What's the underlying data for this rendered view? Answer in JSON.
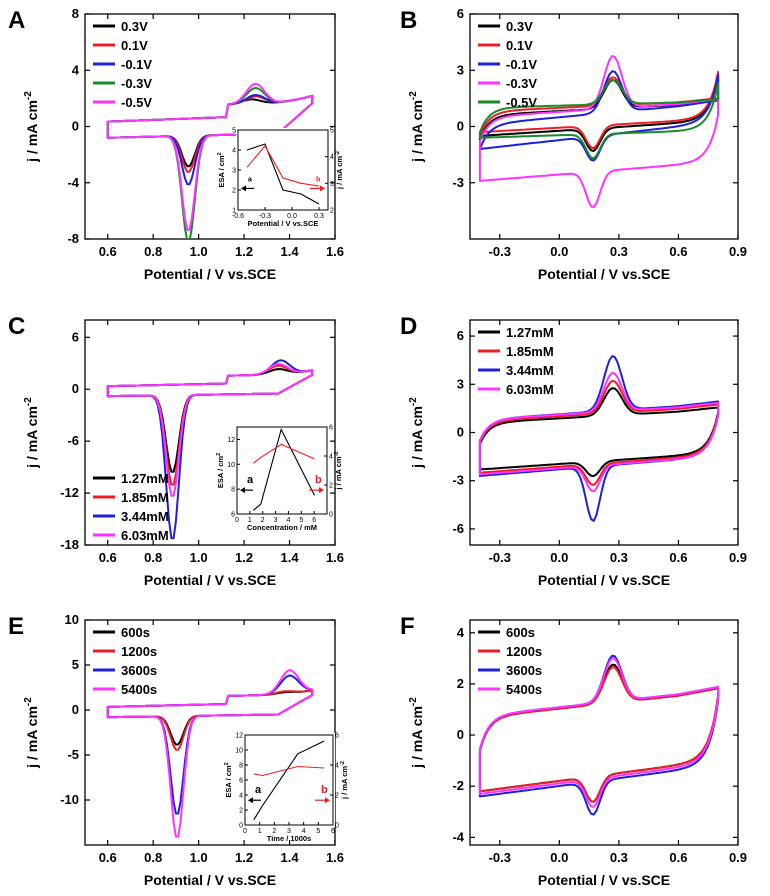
{
  "colors": {
    "black": "#000000",
    "red": "#ee1c24",
    "blue": "#1f1fe0",
    "magenta": "#ff33ff",
    "green": "#1b8a2a"
  },
  "chart_data": [
    {
      "panel": "A",
      "type": "line",
      "xlabel": "Potential / V vs.SCE",
      "ylabel": "j / mA cm",
      "ylabel_sup": "-2",
      "xlim": [
        0.5,
        1.6
      ],
      "ylim": [
        -8,
        8
      ],
      "xticks": [
        "0.6",
        "0.8",
        "1.0",
        "1.2",
        "1.4",
        "1.6"
      ],
      "yticks": [
        "-8",
        "-4",
        "0",
        "4",
        "8"
      ],
      "legend_pos": "top-left",
      "legend": [
        "0.3V",
        "0.1V",
        "-0.1V",
        "-0.3V",
        "-0.5V"
      ],
      "series": [
        {
          "name": "0.3V",
          "color": "black",
          "peak_pos": 1.23,
          "peak_h": 0.3,
          "valley": -2.2
        },
        {
          "name": "0.1V",
          "color": "red",
          "peak_pos": 1.25,
          "peak_h": 0.5,
          "valley": -2.6
        },
        {
          "name": "-0.1V",
          "color": "blue",
          "peak_pos": 1.25,
          "peak_h": 0.6,
          "valley": -3.5
        },
        {
          "name": "-0.3V",
          "color": "green",
          "peak_pos": 1.25,
          "peak_h": 1.1,
          "valley": -7.6
        },
        {
          "name": "-0.5V",
          "color": "magenta",
          "peak_pos": 1.25,
          "peak_h": 1.4,
          "valley": -6.8
        }
      ],
      "inset": {
        "xlabel": "Potential / V vs.SCE",
        "ylabel_left": "ESA / cm",
        "ylabel_left_sup": "2",
        "ylabel_right": "j / mA cm",
        "ylabel_right_sup": "-2",
        "xlim": [
          -0.6,
          0.4
        ],
        "ylim_left": [
          1,
          5
        ],
        "ylim_right": [
          2,
          5
        ],
        "xticks": [
          "-0.6",
          "-0.3",
          "0.0",
          "0.3"
        ],
        "yticks_left": [
          "1",
          "2",
          "3",
          "4",
          "5"
        ],
        "yticks_right": [
          "2",
          "3",
          "4",
          "5"
        ],
        "a": {
          "label": "a",
          "x": [
            -0.5,
            -0.3,
            -0.1,
            0.1,
            0.3
          ],
          "y": [
            4.0,
            4.3,
            2.0,
            1.8,
            1.3
          ]
        },
        "b": {
          "label": "b",
          "x": [
            -0.5,
            -0.3,
            -0.1,
            0.1,
            0.3
          ],
          "y": [
            3.6,
            4.4,
            3.2,
            3.0,
            2.9
          ]
        }
      }
    },
    {
      "panel": "B",
      "type": "line",
      "xlabel": "Potential / V vs.SCE",
      "ylabel": "j / mA cm",
      "ylabel_sup": "-2",
      "xlim": [
        -0.45,
        0.9
      ],
      "ylim": [
        -6,
        6
      ],
      "xticks": [
        "-0.3",
        "0.0",
        "0.3",
        "0.6",
        "0.9"
      ],
      "yticks": [
        "-3",
        "0",
        "3",
        "6"
      ],
      "legend_pos": "top-left",
      "legend": [
        "0.3V",
        "0.1V",
        "-0.1V",
        "-0.3V",
        "-0.5V"
      ],
      "series": [
        {
          "name": "0.3V",
          "color": "black",
          "base_up": 0.6,
          "base_low": -0.5,
          "ox": 1.5,
          "red": 1.2,
          "slope": 0.8
        },
        {
          "name": "0.1V",
          "color": "red",
          "base_up": 0.8,
          "base_low": -0.3,
          "ox": 1.5,
          "red": 1.2,
          "slope": 0.7
        },
        {
          "name": "-0.1V",
          "color": "blue",
          "base_up": 0.1,
          "base_low": -1.2,
          "ox": 2.2,
          "red": 1.3,
          "slope": 1.4
        },
        {
          "name": "-0.3V",
          "color": "magenta",
          "base_up": 0.5,
          "base_low": -2.9,
          "ox": 2.8,
          "red": 1.9,
          "slope": 1.0
        },
        {
          "name": "-0.5V",
          "color": "green",
          "base_up": 1.0,
          "base_low": -0.6,
          "ox": 1.3,
          "red": 1.3,
          "slope": 0.4
        }
      ]
    },
    {
      "panel": "C",
      "type": "line",
      "xlabel": "Potential / V vs.SCE",
      "ylabel": "j / mA cm",
      "ylabel_sup": "-2",
      "xlim": [
        0.5,
        1.6
      ],
      "ylim": [
        -18,
        8
      ],
      "xticks": [
        "0.6",
        "0.8",
        "1.0",
        "1.2",
        "1.4",
        "1.6"
      ],
      "yticks": [
        "-18",
        "-12",
        "-6",
        "0",
        "6"
      ],
      "legend_pos": "bottom-left",
      "legend": [
        "1.27mM",
        "1.85mM",
        "3.44mM",
        "6.03mM"
      ],
      "series": [
        {
          "name": "1.27mM",
          "color": "black",
          "peak_pos": 1.35,
          "peak_h": 0.6,
          "valley": -9.0
        },
        {
          "name": "1.85mM",
          "color": "red",
          "peak_pos": 1.35,
          "peak_h": 1.0,
          "valley": -10.5
        },
        {
          "name": "3.44mM",
          "color": "blue",
          "peak_pos": 1.36,
          "peak_h": 1.6,
          "valley": -16.8
        },
        {
          "name": "6.03mM",
          "color": "magenta",
          "peak_pos": 1.35,
          "peak_h": 1.2,
          "valley": -11.8
        }
      ],
      "inset": {
        "xlabel": "Concentration / mM",
        "ylabel_left": "ESA / cm",
        "ylabel_left_sup": "2",
        "ylabel_right": "j / mA cm",
        "ylabel_right_sup": "-2",
        "xlim": [
          0,
          7
        ],
        "ylim_left": [
          6,
          13
        ],
        "ylim_right": [
          0,
          6
        ],
        "xticks": [
          "0",
          "1",
          "2",
          "3",
          "4",
          "5",
          "6"
        ],
        "yticks_left": [
          "6",
          "8",
          "10",
          "12"
        ],
        "yticks_right": [
          "0",
          "2",
          "4",
          "6"
        ],
        "a": {
          "label": "a",
          "x": [
            1.27,
            1.85,
            3.44,
            6.03
          ],
          "y": [
            6.3,
            6.8,
            12.8,
            7.5
          ]
        },
        "b": {
          "label": "b",
          "x": [
            1.27,
            1.85,
            3.44,
            6.03
          ],
          "y": [
            3.5,
            3.9,
            4.8,
            3.8
          ]
        }
      }
    },
    {
      "panel": "D",
      "type": "line",
      "xlabel": "Potential / V vs.SCE",
      "ylabel": "j / mA cm",
      "ylabel_sup": "-2",
      "xlim": [
        -0.45,
        0.9
      ],
      "ylim": [
        -7,
        7
      ],
      "xticks": [
        "-0.3",
        "0.0",
        "0.3",
        "0.6",
        "0.9"
      ],
      "yticks": [
        "-6",
        "-3",
        "0",
        "3",
        "6"
      ],
      "legend_pos": "top-left",
      "legend": [
        "1.27mM",
        "1.85mM",
        "3.44mM",
        "6.03mM"
      ],
      "series": [
        {
          "name": "1.27mM",
          "color": "black",
          "base_up": 0.6,
          "base_low": -2.3,
          "ox": 1.7,
          "red": 0.9,
          "slope": 1.0
        },
        {
          "name": "1.85mM",
          "color": "red",
          "base_up": 0.7,
          "base_low": -2.5,
          "ox": 2.0,
          "red": 1.3,
          "slope": 1.1
        },
        {
          "name": "3.44mM",
          "color": "blue",
          "base_up": 0.8,
          "base_low": -2.7,
          "ox": 3.4,
          "red": 3.4,
          "slope": 1.2
        },
        {
          "name": "6.03mM",
          "color": "magenta",
          "base_up": 0.8,
          "base_low": -2.6,
          "ox": 2.4,
          "red": 1.6,
          "slope": 1.1
        }
      ]
    },
    {
      "panel": "E",
      "type": "line",
      "xlabel": "Potential / V vs.SCE",
      "ylabel": "j / mA cm",
      "ylabel_sup": "-2",
      "xlim": [
        0.5,
        1.6
      ],
      "ylim": [
        -15,
        10
      ],
      "xticks": [
        "0.6",
        "0.8",
        "1.0",
        "1.2",
        "1.4",
        "1.6"
      ],
      "yticks": [
        "-10",
        "-5",
        "0",
        "5",
        "10"
      ],
      "legend_pos": "top-left",
      "legend": [
        "600s",
        "1200s",
        "3600s",
        "5400s"
      ],
      "series": [
        {
          "name": "600s",
          "color": "black",
          "peak_pos": 1.38,
          "peak_h": 0.2,
          "valley": -3.2
        },
        {
          "name": "1200s",
          "color": "red",
          "peak_pos": 1.38,
          "peak_h": 0.3,
          "valley": -3.8
        },
        {
          "name": "3600s",
          "color": "blue",
          "peak_pos": 1.4,
          "peak_h": 2.0,
          "valley": -11.0
        },
        {
          "name": "5400s",
          "color": "magenta",
          "peak_pos": 1.4,
          "peak_h": 2.6,
          "valley": -13.6
        }
      ],
      "inset": {
        "xlabel": "Time / 1000s",
        "ylabel_left": "ESA / cm",
        "ylabel_left_sup": "2",
        "ylabel_right": "j / mA cm",
        "ylabel_right_sup": "-2",
        "xlim": [
          0,
          6
        ],
        "ylim_left": [
          0,
          12
        ],
        "ylim_right": [
          0,
          6
        ],
        "xticks": [
          "0",
          "1",
          "2",
          "3",
          "4",
          "5",
          "6"
        ],
        "yticks_left": [
          "0",
          "2",
          "4",
          "6",
          "8",
          "10",
          "12"
        ],
        "yticks_right": [
          "0",
          "2",
          "4",
          "6"
        ],
        "a": {
          "label": "a",
          "x": [
            0.6,
            1.2,
            3.6,
            5.4
          ],
          "y": [
            0.7,
            2.6,
            9.5,
            11.2
          ]
        },
        "b": {
          "label": "b",
          "x": [
            0.6,
            1.2,
            3.6,
            5.4
          ],
          "y": [
            3.4,
            3.3,
            3.9,
            3.8
          ]
        }
      }
    },
    {
      "panel": "F",
      "type": "line",
      "xlabel": "Potential / V vs.SCE",
      "ylabel": "j / mA cm",
      "ylabel_sup": "-2",
      "xlim": [
        -0.45,
        0.9
      ],
      "ylim": [
        -4.3,
        4.5
      ],
      "xticks": [
        "-0.3",
        "0.0",
        "0.3",
        "0.6",
        "0.9"
      ],
      "yticks": [
        "-4",
        "-2",
        "0",
        "2",
        "4"
      ],
      "legend_pos": "top-left",
      "legend": [
        "600s",
        "1200s",
        "3600s",
        "5400s"
      ],
      "series": [
        {
          "name": "600s",
          "color": "black",
          "base_up": 0.7,
          "base_low": -2.2,
          "ox": 1.5,
          "red": 1.0,
          "slope": 1.2
        },
        {
          "name": "1200s",
          "color": "red",
          "base_up": 0.7,
          "base_low": -2.2,
          "ox": 1.4,
          "red": 1.0,
          "slope": 1.2
        },
        {
          "name": "3600s",
          "color": "blue",
          "base_up": 0.75,
          "base_low": -2.4,
          "ox": 1.8,
          "red": 1.3,
          "slope": 1.2
        },
        {
          "name": "5400s",
          "color": "magenta",
          "base_up": 0.75,
          "base_low": -2.3,
          "ox": 1.7,
          "red": 1.1,
          "slope": 1.2
        }
      ]
    }
  ]
}
